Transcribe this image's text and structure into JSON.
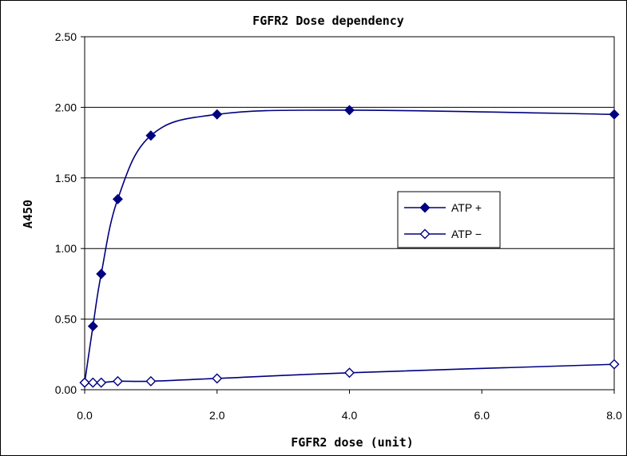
{
  "chart_data": {
    "type": "line",
    "title": "FGFR2 Dose dependency",
    "xlabel": "FGFR2 dose (unit)",
    "ylabel": "A450",
    "xlim": [
      0,
      8
    ],
    "ylim": [
      0,
      2.5
    ],
    "x_ticks": [
      "0.0",
      "2.0",
      "4.0",
      "6.0",
      "8.0"
    ],
    "y_ticks": [
      "0.00",
      "0.50",
      "1.00",
      "1.50",
      "2.00",
      "2.50"
    ],
    "grid": "horizontal",
    "legend_position": "center-right",
    "series": [
      {
        "name": "ATP +",
        "marker": "filled-diamond",
        "color": "#000080",
        "x": [
          0,
          0.125,
          0.25,
          0.5,
          1,
          2,
          4,
          8
        ],
        "y": [
          0.05,
          0.45,
          0.82,
          1.35,
          1.8,
          1.95,
          1.98,
          1.95
        ]
      },
      {
        "name": "ATP −",
        "marker": "open-diamond",
        "color": "#000080",
        "x": [
          0,
          0.125,
          0.25,
          0.5,
          1,
          2,
          4,
          8
        ],
        "y": [
          0.05,
          0.05,
          0.05,
          0.06,
          0.06,
          0.08,
          0.12,
          0.18
        ]
      }
    ]
  }
}
